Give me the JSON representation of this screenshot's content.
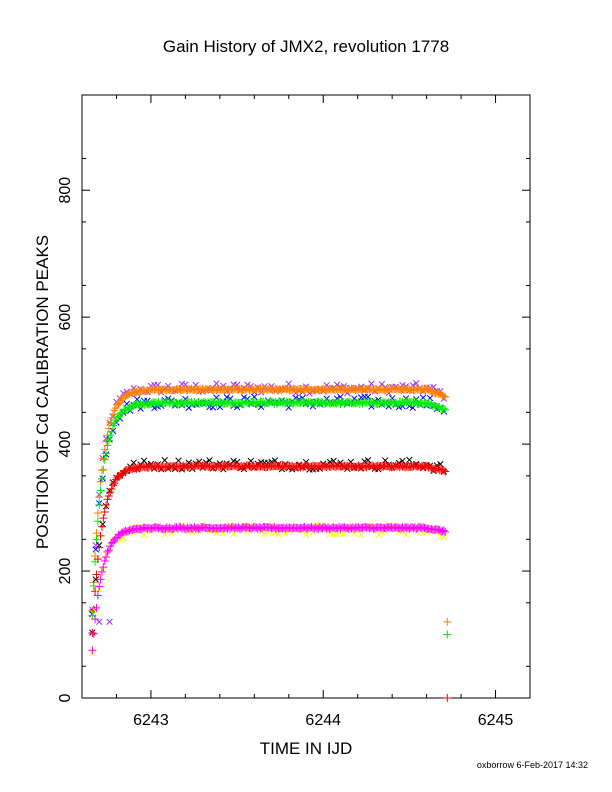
{
  "chart_data": {
    "type": "scatter",
    "title": "Gain History of JMX2, revolution 1778",
    "xlabel": "TIME IN IJD",
    "ylabel": "POSITION OF Cd CALIBRATION PEAKS",
    "xlim": [
      6242.6,
      6245.2
    ],
    "ylim": [
      0,
      950
    ],
    "x_ticks": [
      6243,
      6244,
      6245
    ],
    "x_tick_labels": [
      "6243",
      "6244",
      "6245"
    ],
    "y_ticks": [
      0,
      200,
      400,
      600,
      800
    ],
    "y_tick_labels": [
      "0",
      "200",
      "400",
      "600",
      "800"
    ],
    "grid": false,
    "series": [
      {
        "marker": "x",
        "color": "#9b30ff",
        "level": 488,
        "noise": 8,
        "x": [
          6242.7,
          6242.76
        ],
        "values": [
          120,
          120
        ]
      },
      {
        "marker": "+",
        "color": "#ff7f00",
        "level": 486,
        "noise": 1.5,
        "x": [
          6244.72
        ],
        "values": [
          120
        ]
      },
      {
        "marker": "x",
        "color": "#0000ff",
        "level": 466,
        "noise": 9,
        "x": [],
        "values": []
      },
      {
        "marker": "+",
        "color": "#00ee00",
        "level": 465,
        "noise": 2,
        "x": [
          6244.72
        ],
        "values": [
          100
        ]
      },
      {
        "marker": "x",
        "color": "#000000",
        "level": 368,
        "noise": 8,
        "x": [],
        "values": []
      },
      {
        "marker": "+",
        "color": "#ff0000",
        "level": 365,
        "noise": 1.5,
        "x": [
          6244.72
        ],
        "values": [
          0
        ]
      },
      {
        "marker": "x",
        "color": "#ffff00",
        "level": 265,
        "noise": 8,
        "x": [],
        "values": []
      },
      {
        "marker": "+",
        "color": "#ff00ff",
        "level": 268,
        "noise": 1.5,
        "x": [],
        "values": []
      }
    ],
    "x_start": 6242.66,
    "x_end": 6244.72
  },
  "footer": "oxborrow 6-Feb-2017 14:32"
}
